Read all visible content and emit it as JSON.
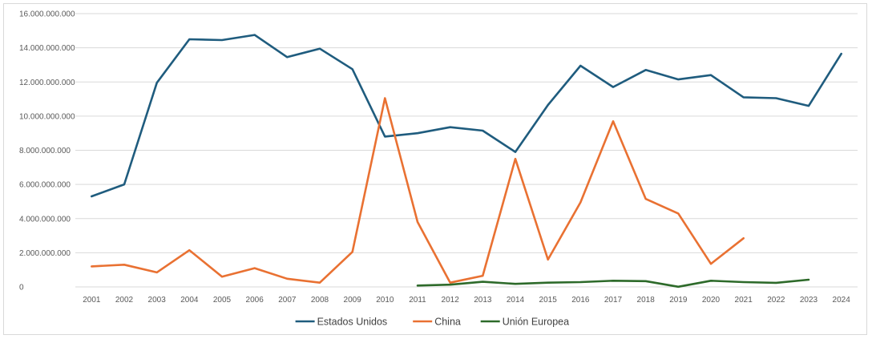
{
  "chart_data": {
    "type": "line",
    "title": "",
    "xlabel": "",
    "ylabel": "",
    "ylim": [
      0,
      16000000000
    ],
    "yticks": [
      0,
      2000000000,
      4000000000,
      6000000000,
      8000000000,
      10000000000,
      12000000000,
      14000000000,
      16000000000
    ],
    "ytick_labels": [
      "0",
      "2.000.000.000",
      "4.000.000.000",
      "6.000.000.000",
      "8.000.000.000",
      "10.000.000.000",
      "12.000.000.000",
      "14.000.000.000",
      "16.000.000.000"
    ],
    "categories": [
      "2001",
      "2002",
      "2003",
      "2004",
      "2005",
      "2006",
      "2007",
      "2008",
      "2009",
      "2010",
      "2011",
      "2012",
      "2013",
      "2014",
      "2015",
      "2016",
      "2017",
      "2018",
      "2019",
      "2020",
      "2021",
      "2022",
      "2023",
      "2024"
    ],
    "grid": true,
    "legend_position": "bottom",
    "series": [
      {
        "name": "Estados Unidos",
        "color": "#1f5c7e",
        "values": [
          5300000000,
          6000000000,
          11950000000,
          14500000000,
          14450000000,
          14750000000,
          13450000000,
          13950000000,
          12750000000,
          8800000000,
          9000000000,
          9350000000,
          9150000000,
          7900000000,
          10650000000,
          12950000000,
          11700000000,
          12700000000,
          12150000000,
          12400000000,
          11100000000,
          11050000000,
          10600000000,
          13650000000
        ]
      },
      {
        "name": "China",
        "color": "#e97132",
        "values": [
          1200000000,
          1300000000,
          850000000,
          2150000000,
          600000000,
          1100000000,
          480000000,
          250000000,
          2050000000,
          11050000000,
          3800000000,
          250000000,
          650000000,
          7500000000,
          1600000000,
          4950000000,
          9700000000,
          5150000000,
          4300000000,
          1350000000,
          2850000000,
          null,
          null,
          null
        ]
      },
      {
        "name": "Unión Europea",
        "color": "#2d6a2a",
        "values": [
          null,
          null,
          null,
          null,
          null,
          null,
          null,
          null,
          null,
          null,
          80000000,
          130000000,
          300000000,
          180000000,
          250000000,
          280000000,
          360000000,
          340000000,
          10000000,
          360000000,
          280000000,
          240000000,
          420000000,
          null
        ]
      }
    ]
  }
}
